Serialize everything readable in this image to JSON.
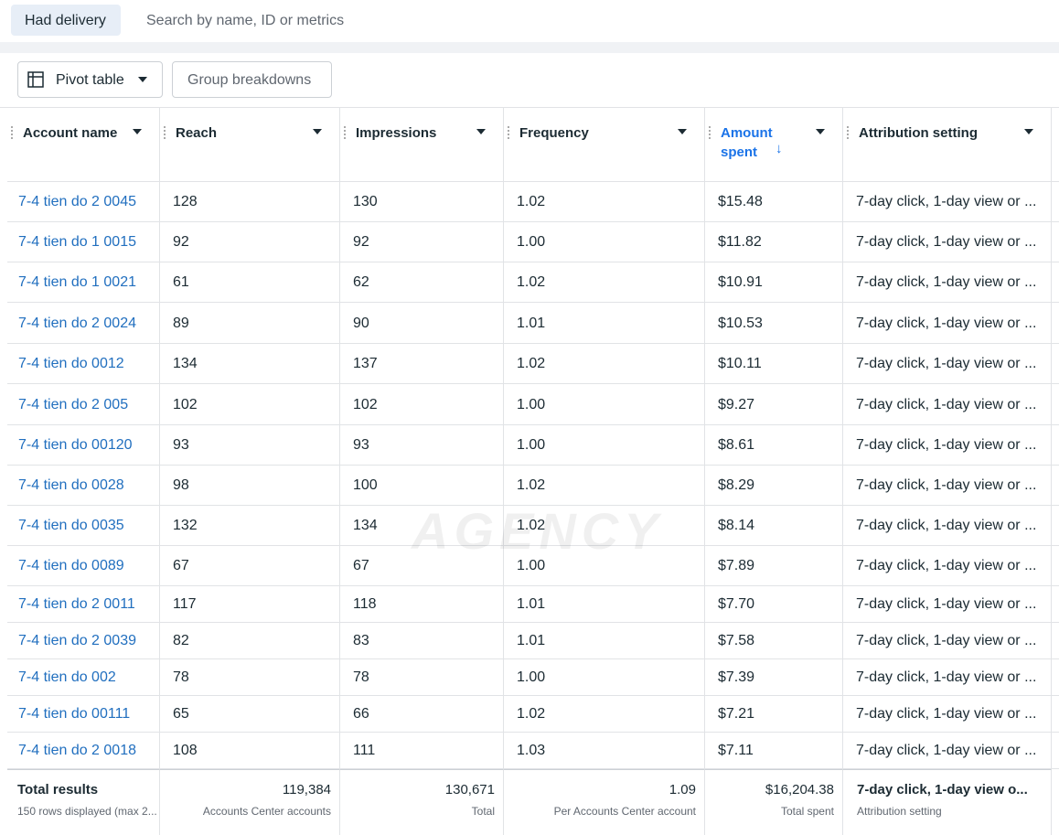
{
  "toolbar": {
    "filter": "Had delivery",
    "search_placeholder": "Search by name, ID or metrics",
    "pivot": "Pivot table",
    "group": "Group breakdowns"
  },
  "table": {
    "columns": [
      "Account name",
      "Reach",
      "Impressions",
      "Frequency",
      "Amount spent",
      "Attribution setting"
    ],
    "rows": [
      [
        "7-4 tien do 2 0045",
        "128",
        "130",
        "1.02",
        "$15.48",
        "7-day click, 1-day view or ..."
      ],
      [
        "7-4 tien do 1 0015",
        "92",
        "92",
        "1.00",
        "$11.82",
        "7-day click, 1-day view or ..."
      ],
      [
        "7-4 tien do 1 0021",
        "61",
        "62",
        "1.02",
        "$10.91",
        "7-day click, 1-day view or ..."
      ],
      [
        "7-4 tien do 2 0024",
        "89",
        "90",
        "1.01",
        "$10.53",
        "7-day click, 1-day view or ..."
      ],
      [
        "7-4 tien do 0012",
        "134",
        "137",
        "1.02",
        "$10.11",
        "7-day click, 1-day view or ..."
      ],
      [
        "7-4 tien do 2 005",
        "102",
        "102",
        "1.00",
        "$9.27",
        "7-day click, 1-day view or ..."
      ],
      [
        "7-4 tien do 00120",
        "93",
        "93",
        "1.00",
        "$8.61",
        "7-day click, 1-day view or ..."
      ],
      [
        "7-4 tien do 0028",
        "98",
        "100",
        "1.02",
        "$8.29",
        "7-day click, 1-day view or ..."
      ],
      [
        "7-4 tien do 0035",
        "132",
        "134",
        "1.02",
        "$8.14",
        "7-day click, 1-day view or ..."
      ],
      [
        "7-4 tien do 0089",
        "67",
        "67",
        "1.00",
        "$7.89",
        "7-day click, 1-day view or ..."
      ],
      [
        "7-4 tien do 2 0011",
        "117",
        "118",
        "1.01",
        "$7.70",
        "7-day click, 1-day view or ..."
      ],
      [
        "7-4 tien do 2 0039",
        "82",
        "83",
        "1.01",
        "$7.58",
        "7-day click, 1-day view or ..."
      ],
      [
        "7-4 tien do 002",
        "78",
        "78",
        "1.00",
        "$7.39",
        "7-day click, 1-day view or ..."
      ],
      [
        "7-4 tien do 00111",
        "65",
        "66",
        "1.02",
        "$7.21",
        "7-day click, 1-day view or ..."
      ],
      [
        "7-4 tien do 2 0018",
        "108",
        "111",
        "1.03",
        "$7.11",
        "7-day click, 1-day view or ..."
      ]
    ],
    "totals": [
      {
        "value": "Total results",
        "label": "150 rows displayed (max 2..."
      },
      {
        "value": "119,384",
        "label": "Accounts Center accounts"
      },
      {
        "value": "130,671",
        "label": "Total"
      },
      {
        "value": "1.09",
        "label": "Per Accounts Center account"
      },
      {
        "value": "$16,204.38",
        "label": "Total spent"
      },
      {
        "value": "7-day click, 1-day view o...",
        "label": "Attribution setting"
      }
    ]
  },
  "watermark": "AGENCY"
}
